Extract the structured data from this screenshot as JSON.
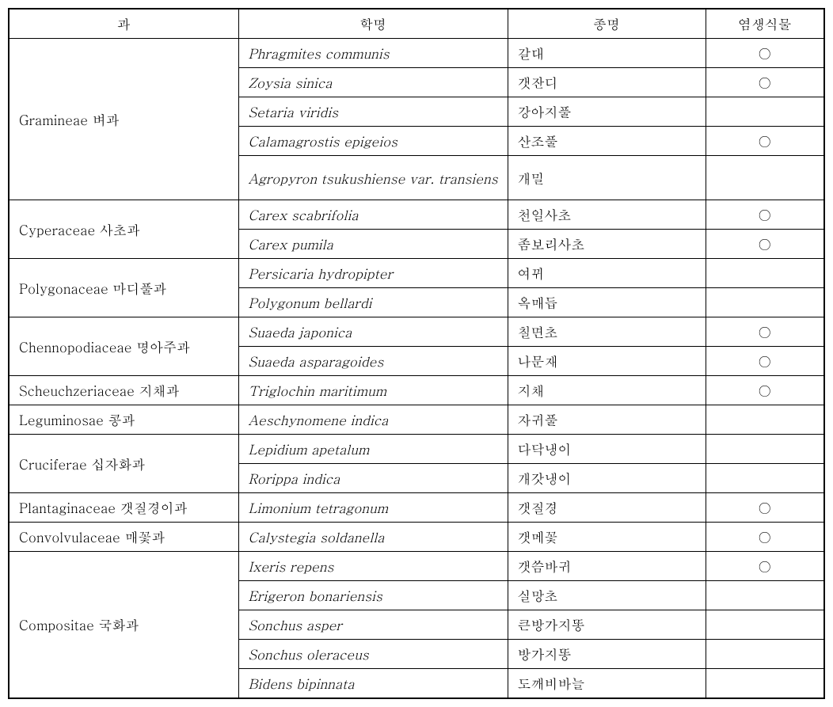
{
  "table": {
    "headers": {
      "family": "과",
      "sciname": "학명",
      "species": "종명",
      "halophyte": "염생식물"
    },
    "halophyte_mark": "○",
    "families": [
      {
        "name": "Gramineae 벼과",
        "rows": [
          {
            "sciname": "Phragmites communis",
            "species": "갈대",
            "halophyte": true
          },
          {
            "sciname": "Zoysia sinica",
            "species": "갯잔디",
            "halophyte": true
          },
          {
            "sciname": "Setaria viridis",
            "species": "강아지풀",
            "halophyte": false
          },
          {
            "sciname": "Calamagrostis epigeios",
            "species": "산조풀",
            "halophyte": true
          },
          {
            "sciname": "Agropyron tsukushiense var. transiens",
            "species": "개밀",
            "halophyte": false,
            "multiline": true
          }
        ]
      },
      {
        "name": "Cyperaceae 사초과",
        "rows": [
          {
            "sciname": "Carex scabrifolia",
            "species": "천일사초",
            "halophyte": true
          },
          {
            "sciname": "Carex pumila",
            "species": "좀보리사초",
            "halophyte": true
          }
        ]
      },
      {
        "name": "Polygonaceae 마디풀과",
        "rows": [
          {
            "sciname": "Persicaria hydropipter",
            "species": "여뀌",
            "halophyte": false
          },
          {
            "sciname": "Polygonum bellardi",
            "species": "옥매듭",
            "halophyte": false
          }
        ]
      },
      {
        "name": "Chennopodiaceae 명아주과",
        "rows": [
          {
            "sciname": "Suaeda japonica",
            "species": "칠면초",
            "halophyte": true
          },
          {
            "sciname": "Suaeda asparagoides",
            "species": "나문재",
            "halophyte": true
          }
        ]
      },
      {
        "name": "Scheuchzeriaceae 지채과",
        "rows": [
          {
            "sciname": "Triglochin maritimum",
            "species": "지채",
            "halophyte": true
          }
        ]
      },
      {
        "name": "Leguminosae 콩과",
        "rows": [
          {
            "sciname": "Aeschynomene indica",
            "species": "자귀풀",
            "halophyte": false
          }
        ]
      },
      {
        "name": "Cruciferae 십자화과",
        "rows": [
          {
            "sciname": "Lepidium apetalum",
            "species": "다닥냉이",
            "halophyte": false
          },
          {
            "sciname": "Rorippa indica",
            "species": "개갓냉이",
            "halophyte": false
          }
        ]
      },
      {
        "name": "Plantaginaceae 갯질경이과",
        "rows": [
          {
            "sciname": "Limonium tetragonum",
            "species": "갯질경",
            "halophyte": true
          }
        ]
      },
      {
        "name": "Convolvulaceae 매꽃과",
        "rows": [
          {
            "sciname": "Calystegia soldanella",
            "species": "갯메꽃",
            "halophyte": true
          }
        ]
      },
      {
        "name": "Compositae 국화과",
        "rows": [
          {
            "sciname": "Ixeris repens",
            "species": "갯씀바귀",
            "halophyte": true
          },
          {
            "sciname": "Erigeron bonariensis",
            "species": "실망초",
            "halophyte": false
          },
          {
            "sciname": "Sonchus asper",
            "species": "큰방가지똥",
            "halophyte": false
          },
          {
            "sciname": "Sonchus oleraceus",
            "species": "방가지똥",
            "halophyte": false
          },
          {
            "sciname": "Bidens bipinnata",
            "species": "도깨비바늘",
            "halophyte": false
          }
        ]
      }
    ]
  }
}
